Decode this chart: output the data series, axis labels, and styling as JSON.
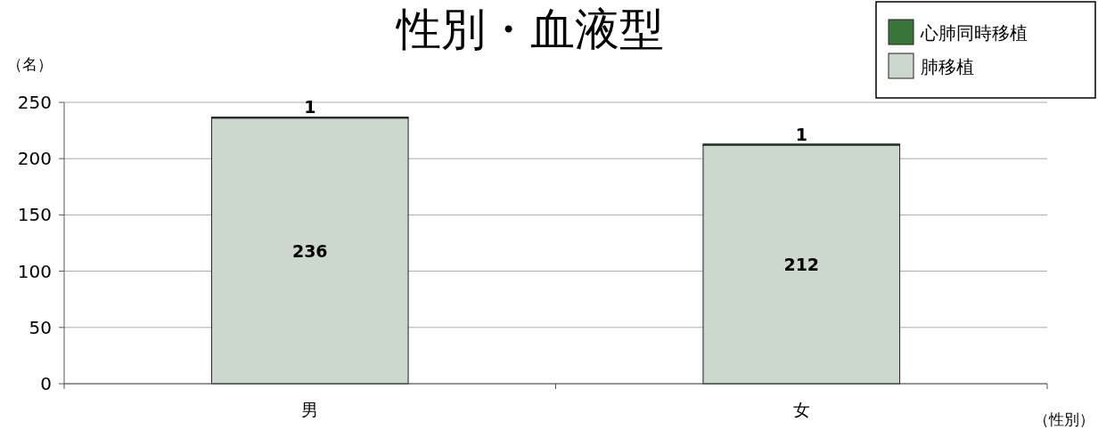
{
  "chart_data": {
    "type": "bar",
    "title": "性別・血液型",
    "ylabel": "（名）",
    "xlabel": "（性別）",
    "categories": [
      "男",
      "女"
    ],
    "stacked": true,
    "series": [
      {
        "name": "肺移植",
        "color": "#ccd7ce",
        "values": [
          236,
          212
        ]
      },
      {
        "name": "心肺同時移植",
        "color": "#38763a",
        "values": [
          1,
          1
        ]
      }
    ],
    "ylim": [
      0,
      250
    ],
    "yticks": [
      0,
      50,
      100,
      150,
      200,
      250
    ],
    "grid": "y",
    "legend": "top right",
    "data_labels": true
  }
}
